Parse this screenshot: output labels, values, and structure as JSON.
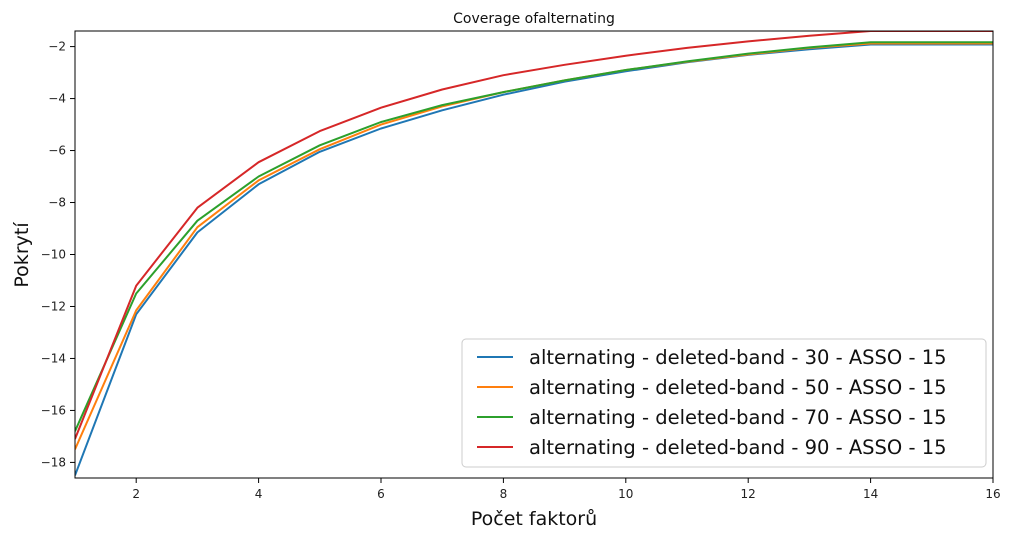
{
  "chart_data": {
    "type": "line",
    "title": "Coverage ofalternating",
    "xlabel": "Počet faktorů",
    "ylabel": "Pokrytí",
    "xlim": [
      1,
      16
    ],
    "ylim": [
      -18.6,
      -1.4
    ],
    "xticks": [
      2,
      4,
      6,
      8,
      10,
      12,
      14,
      16
    ],
    "yticks": [
      -18,
      -16,
      -14,
      -12,
      -10,
      -8,
      -6,
      -4,
      -2
    ],
    "grid": false,
    "legend_position": "lower-right",
    "x": [
      1,
      2,
      3,
      4,
      5,
      6,
      7,
      8,
      9,
      10,
      11,
      12,
      13,
      14,
      15,
      16
    ],
    "series": [
      {
        "name": "alternating - deleted-band - 30 - ASSO - 15",
        "color": "#1f77b4",
        "values": [
          -18.5,
          -12.3,
          -9.15,
          -7.3,
          -6.05,
          -5.15,
          -4.45,
          -3.85,
          -3.35,
          -2.95,
          -2.6,
          -2.32,
          -2.1,
          -1.92,
          -1.92,
          -1.92
        ]
      },
      {
        "name": "alternating - deleted-band - 50 - ASSO - 15",
        "color": "#ff7f0e",
        "values": [
          -17.5,
          -12.15,
          -8.95,
          -7.15,
          -5.95,
          -5.0,
          -4.3,
          -3.75,
          -3.3,
          -2.9,
          -2.58,
          -2.3,
          -2.05,
          -1.88,
          -1.88,
          -1.88
        ]
      },
      {
        "name": "alternating - deleted-band - 70 - ASSO - 15",
        "color": "#2ca02c",
        "values": [
          -16.8,
          -11.5,
          -8.7,
          -7.0,
          -5.8,
          -4.9,
          -4.25,
          -3.75,
          -3.3,
          -2.9,
          -2.57,
          -2.27,
          -2.03,
          -1.83,
          -1.83,
          -1.83
        ]
      },
      {
        "name": "alternating - deleted-band - 90 - ASSO - 15",
        "color": "#d62728",
        "values": [
          -17.1,
          -11.2,
          -8.2,
          -6.45,
          -5.25,
          -4.35,
          -3.65,
          -3.1,
          -2.7,
          -2.35,
          -2.05,
          -1.8,
          -1.58,
          -1.4,
          -1.4,
          -1.4
        ]
      }
    ]
  }
}
